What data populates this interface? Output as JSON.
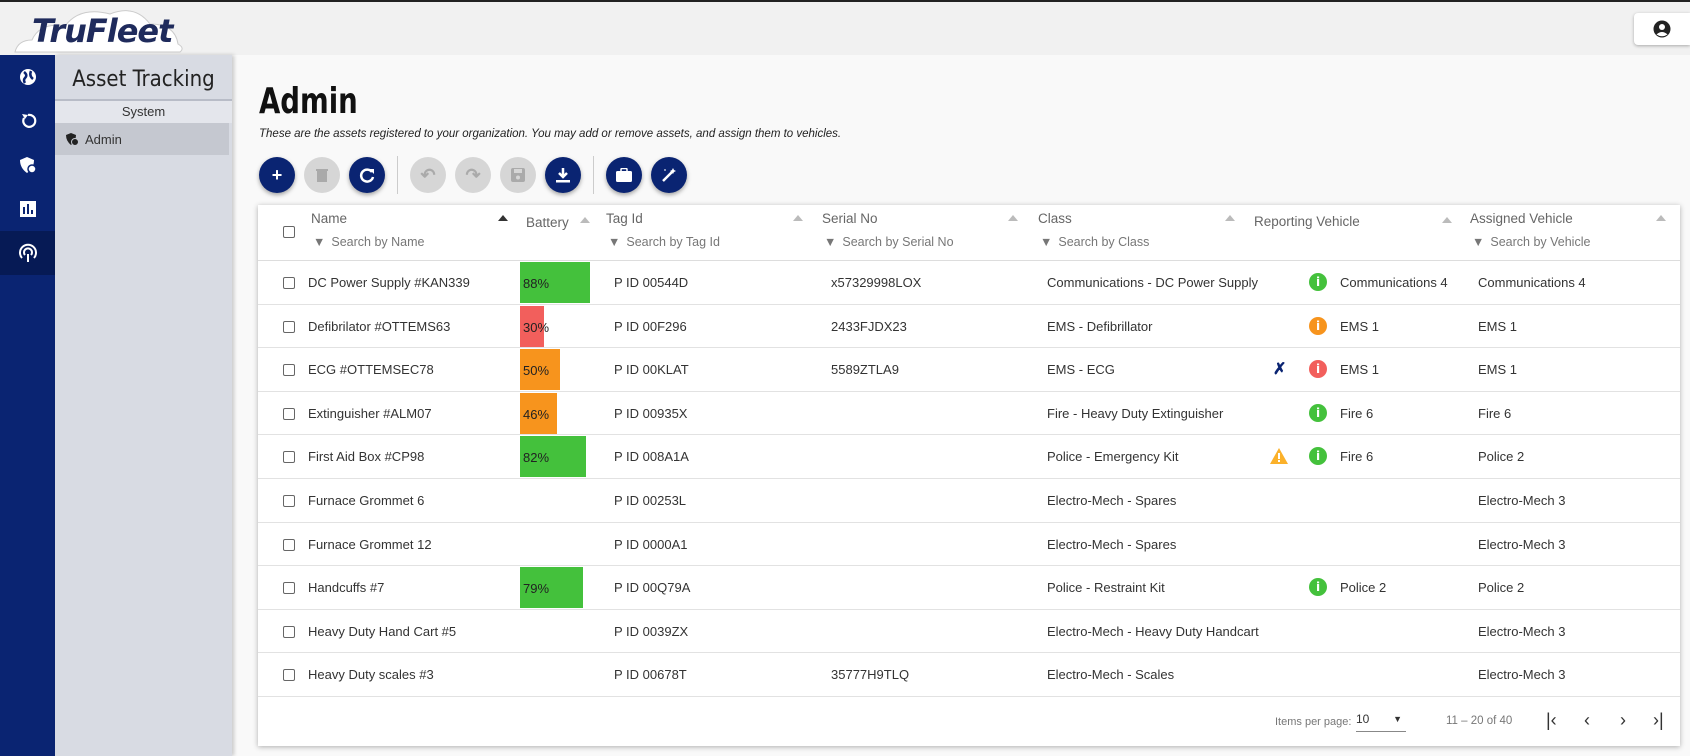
{
  "app": {
    "logo": "TruFleet"
  },
  "panel": {
    "title": "Asset Tracking",
    "section": "System",
    "item": "Admin"
  },
  "page": {
    "title": "Admin",
    "subtitle": "These are the assets registered to your organization. You may add or remove assets, and assign them to vehicles."
  },
  "colors": {
    "brand": "#0a2472",
    "green": "#44c13c",
    "orange": "#f7941d",
    "red": "#f25f5c",
    "warning": "#fbb12a"
  },
  "table": {
    "columns": {
      "name": "Name",
      "battery": "Battery",
      "tag": "Tag Id",
      "serial": "Serial No",
      "class": "Class",
      "reporting": "Reporting Vehicle",
      "assigned": "Assigned Vehicle"
    },
    "search": {
      "name": "Search by Name",
      "tag": "Search by Tag Id",
      "serial": "Search by Serial No",
      "class": "Search by Class",
      "assigned": "Search by Vehicle"
    },
    "rows": [
      {
        "name": "DC Power Supply #KAN339",
        "battery": 88,
        "battery_label": "88%",
        "tag": "P ID 00544D",
        "serial": "x57329998LOX",
        "class": "Communications - DC Power Supply",
        "status": "green",
        "bt_off": false,
        "warning": false,
        "reporting": "Communications 4",
        "assigned": "Communications 4"
      },
      {
        "name": "Defibrilator #OTTEMS63",
        "battery": 30,
        "battery_label": "30%",
        "tag": "P ID 00F296",
        "serial": "2433FJDX23",
        "class": "EMS - Defibrillator",
        "status": "orange",
        "bt_off": false,
        "warning": false,
        "reporting": "EMS 1",
        "assigned": "EMS 1"
      },
      {
        "name": "ECG #OTTEMSEC78",
        "battery": 50,
        "battery_label": "50%",
        "tag": "P ID 00KLAT",
        "serial": "5589ZTLA9",
        "class": "EMS - ECG",
        "status": "red",
        "bt_off": true,
        "warning": false,
        "reporting": "EMS 1",
        "assigned": "EMS 1"
      },
      {
        "name": "Extinguisher #ALM07",
        "battery": 46,
        "battery_label": "46%",
        "tag": "P ID 00935X",
        "serial": "",
        "class": "Fire - Heavy Duty Extinguisher",
        "status": "green",
        "bt_off": false,
        "warning": false,
        "reporting": "Fire 6",
        "assigned": "Fire 6"
      },
      {
        "name": "First Aid Box #CP98",
        "battery": 82,
        "battery_label": "82%",
        "tag": "P ID 008A1A",
        "serial": "",
        "class": "Police - Emergency Kit",
        "status": "green",
        "bt_off": false,
        "warning": true,
        "reporting": "Fire 6",
        "assigned": "Police 2"
      },
      {
        "name": "Furnace Grommet 6",
        "battery": null,
        "battery_label": "",
        "tag": "P ID 00253L",
        "serial": "",
        "class": "Electro-Mech - Spares",
        "status": null,
        "bt_off": false,
        "warning": false,
        "reporting": "",
        "assigned": "Electro-Mech 3"
      },
      {
        "name": "Furnace Grommet 12",
        "battery": null,
        "battery_label": "",
        "tag": "P ID 0000A1",
        "serial": "",
        "class": "Electro-Mech - Spares",
        "status": null,
        "bt_off": false,
        "warning": false,
        "reporting": "",
        "assigned": "Electro-Mech 3"
      },
      {
        "name": "Handcuffs #7",
        "battery": 79,
        "battery_label": "79%",
        "tag": "P ID 00Q79A",
        "serial": "",
        "class": "Police - Restraint Kit",
        "status": "green",
        "bt_off": false,
        "warning": false,
        "reporting": "Police 2",
        "assigned": "Police 2"
      },
      {
        "name": "Heavy Duty Hand Cart #5",
        "battery": null,
        "battery_label": "",
        "tag": "P ID 0039ZX",
        "serial": "",
        "class": "Electro-Mech - Heavy Duty Handcart",
        "status": null,
        "bt_off": false,
        "warning": false,
        "reporting": "",
        "assigned": "Electro-Mech 3"
      },
      {
        "name": "Heavy Duty scales #3",
        "battery": null,
        "battery_label": "",
        "tag": "P ID 00678T",
        "serial": "35777H9TLQ",
        "class": "Electro-Mech - Scales",
        "status": null,
        "bt_off": false,
        "warning": false,
        "reporting": "",
        "assigned": "Electro-Mech 3"
      }
    ]
  },
  "pagination": {
    "items_per_page_label": "Items per page:",
    "items_per_page": "10",
    "range": "11 – 20 of 40"
  }
}
